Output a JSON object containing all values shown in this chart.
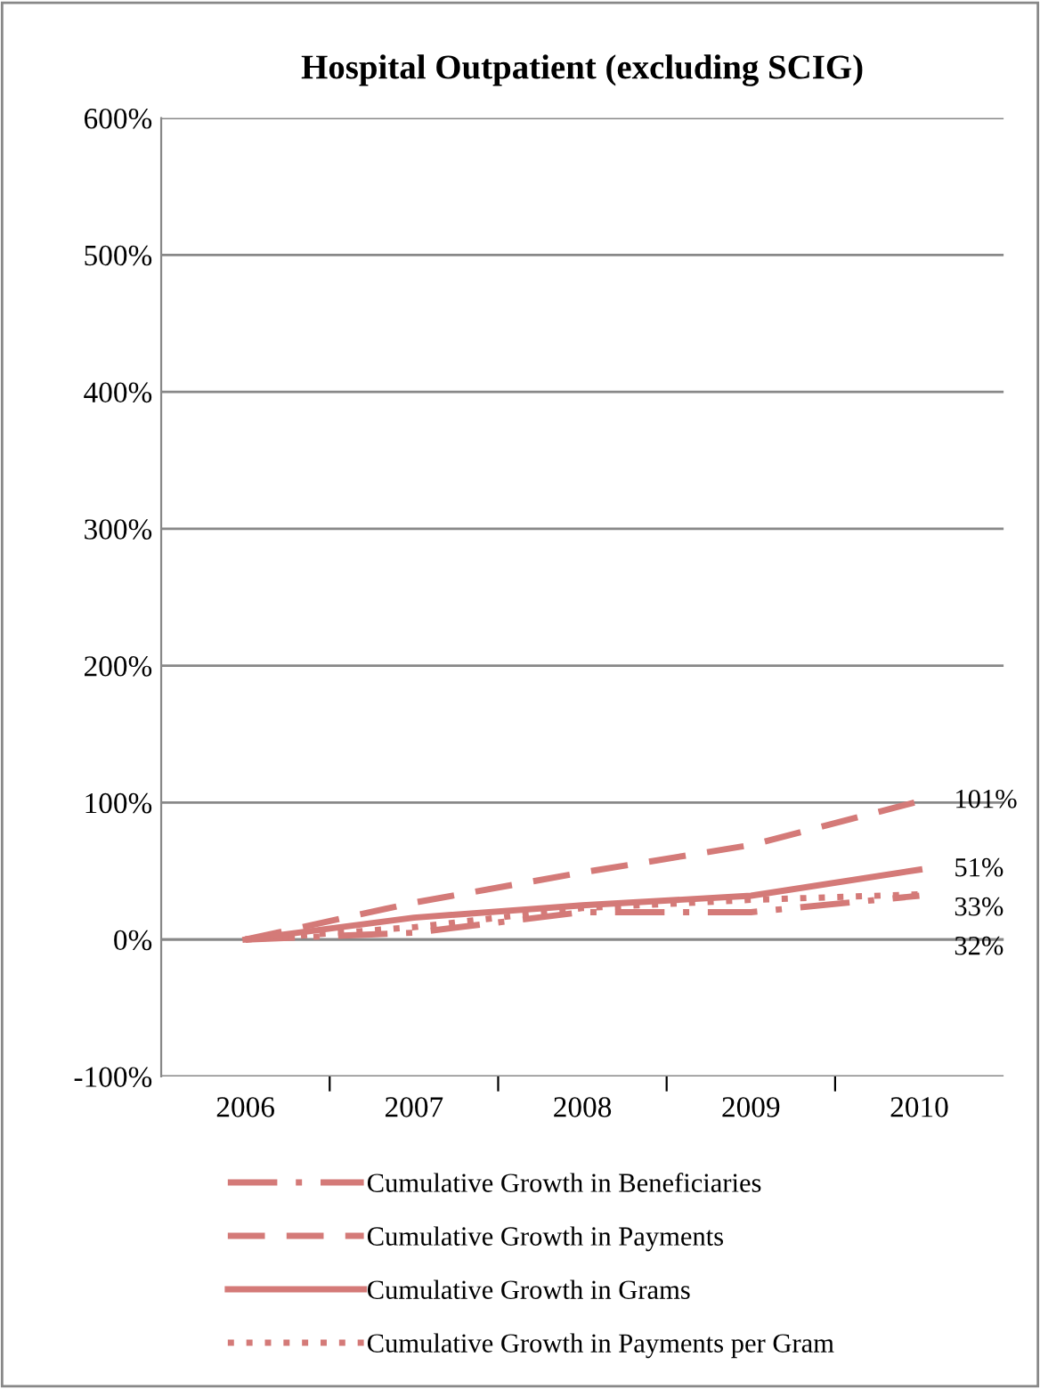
{
  "chart_data": {
    "type": "line",
    "title": "Hospital Outpatient (excluding SCIG)",
    "categories": [
      "2006",
      "2007",
      "2008",
      "2009",
      "2010"
    ],
    "series": [
      {
        "name": "Cumulative Growth in Beneficiaries",
        "color": "#d47a78",
        "line_style": "dashdot",
        "values": [
          0,
          5,
          20,
          20,
          32
        ],
        "value_labels": [
          null,
          null,
          null,
          null,
          "32%"
        ]
      },
      {
        "name": "Cumulative Growth in Payments",
        "color": "#d47a78",
        "line_style": "dashed",
        "values": [
          0,
          27,
          49,
          69,
          101
        ],
        "value_labels": [
          null,
          null,
          null,
          null,
          "101%"
        ]
      },
      {
        "name": "Cumulative Growth in Grams",
        "color": "#d47a78",
        "line_style": "solid",
        "values": [
          0,
          16,
          25,
          32,
          51
        ],
        "value_labels": [
          null,
          null,
          null,
          null,
          "51%"
        ]
      },
      {
        "name": "Cumulative Growth in Payments per Gram",
        "color": "#d47a78",
        "line_style": "dotted",
        "values": [
          0,
          9,
          23,
          29,
          33
        ],
        "value_labels": [
          null,
          null,
          null,
          null,
          "33%"
        ]
      }
    ],
    "ylim": [
      -100,
      600
    ],
    "yticks": [
      {
        "value": -100,
        "label": "-100%"
      },
      {
        "value": 0,
        "label": "0%"
      },
      {
        "value": 100,
        "label": "100%"
      },
      {
        "value": 200,
        "label": "200%"
      },
      {
        "value": 300,
        "label": "300%"
      },
      {
        "value": 400,
        "label": "400%"
      },
      {
        "value": 500,
        "label": "500%"
      },
      {
        "value": 600,
        "label": "600%"
      }
    ],
    "grid": "y",
    "legend": "bottom",
    "marker": "none"
  }
}
